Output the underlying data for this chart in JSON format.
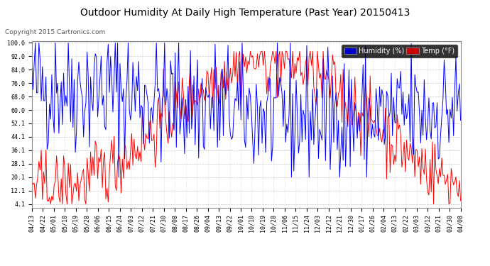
{
  "title": "Outdoor Humidity At Daily High Temperature (Past Year) 20150413",
  "copyright": "Copyright 2015 Cartronics.com",
  "legend_humidity_label": "Humidity (%)",
  "legend_temp_label": "Temp (°F)",
  "legend_humidity_bg": "#0000cc",
  "legend_temp_bg": "#cc0000",
  "humidity_color": "#0000ff",
  "temp_color": "#ff0000",
  "bg_color": "#ffffff",
  "plot_bg_color": "#ffffff",
  "grid_color": "#bbbbbb",
  "yticks": [
    4.1,
    12.1,
    20.1,
    28.1,
    36.1,
    44.1,
    52.1,
    60.0,
    68.0,
    76.0,
    84.0,
    92.0,
    100.0
  ],
  "ylim_min": 2.0,
  "ylim_max": 101.0,
  "title_fontsize": 10,
  "copyright_fontsize": 6.5,
  "legend_fontsize": 7,
  "tick_fontsize": 6,
  "xtick_dates": [
    "04/13",
    "04/22",
    "05/01",
    "05/10",
    "05/19",
    "05/28",
    "06/06",
    "06/15",
    "06/24",
    "07/03",
    "07/12",
    "07/21",
    "07/30",
    "08/08",
    "08/17",
    "08/26",
    "09/04",
    "09/13",
    "09/22",
    "10/01",
    "10/10",
    "10/19",
    "10/28",
    "11/06",
    "11/15",
    "11/24",
    "12/03",
    "12/12",
    "12/21",
    "12/30",
    "01/17",
    "01/26",
    "02/04",
    "02/13",
    "02/22",
    "03/03",
    "03/12",
    "03/21",
    "03/30",
    "04/08"
  ],
  "num_points": 366
}
